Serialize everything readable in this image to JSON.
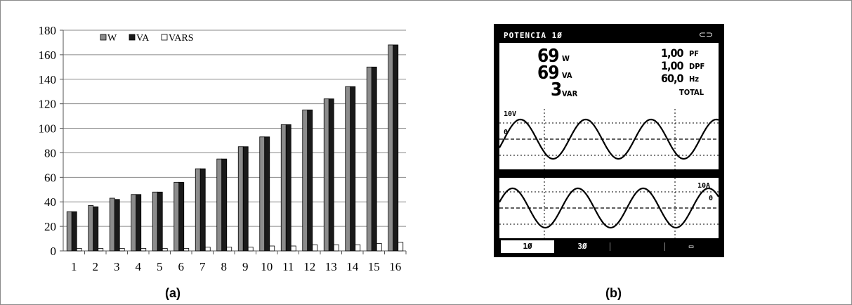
{
  "chart_data": {
    "type": "bar",
    "categories": [
      "1",
      "2",
      "3",
      "4",
      "5",
      "6",
      "7",
      "8",
      "9",
      "10",
      "11",
      "12",
      "13",
      "14",
      "15",
      "16"
    ],
    "series": [
      {
        "name": "W",
        "color": "#8c8c8c",
        "values": [
          32,
          37,
          43,
          46,
          48,
          56,
          67,
          75,
          85,
          93,
          103,
          115,
          124,
          134,
          150,
          168
        ]
      },
      {
        "name": "VA",
        "color": "#1a1a1a",
        "values": [
          32,
          36,
          42,
          46,
          48,
          56,
          67,
          75,
          85,
          93,
          103,
          115,
          124,
          134,
          150,
          168
        ]
      },
      {
        "name": "VARS",
        "color": "#ffffff",
        "values": [
          2,
          2,
          2,
          2,
          2,
          2,
          3,
          3,
          3,
          4,
          4,
          5,
          5,
          5,
          6,
          7
        ]
      }
    ],
    "ylim": [
      0,
      180
    ],
    "yticks": [
      0,
      20,
      40,
      60,
      80,
      100,
      120,
      140,
      160,
      180
    ],
    "grid": true,
    "legend": "top-left"
  },
  "captions": {
    "a": "(a)",
    "b": "(b)"
  },
  "meter": {
    "title": "POTENCIA 1Ø",
    "plug_icon": "plug-icon",
    "w_value": "69",
    "w_unit": "W",
    "va_value": "69",
    "va_unit": "VA",
    "var_value": "3",
    "var_unit": "VAR",
    "pf_value": "1,00",
    "pf_unit": "PF",
    "dpf_value": "1,00",
    "dpf_unit": "DPF",
    "hz_value": "60,0",
    "hz_unit": "Hz",
    "total_label": "TOTAL",
    "voltage_scale": "10V",
    "current_scale": "10A",
    "zero_label": "0",
    "tabs": [
      "1Ø",
      "3Ø",
      "",
      ""
    ],
    "screen_icon": "display-icon"
  }
}
